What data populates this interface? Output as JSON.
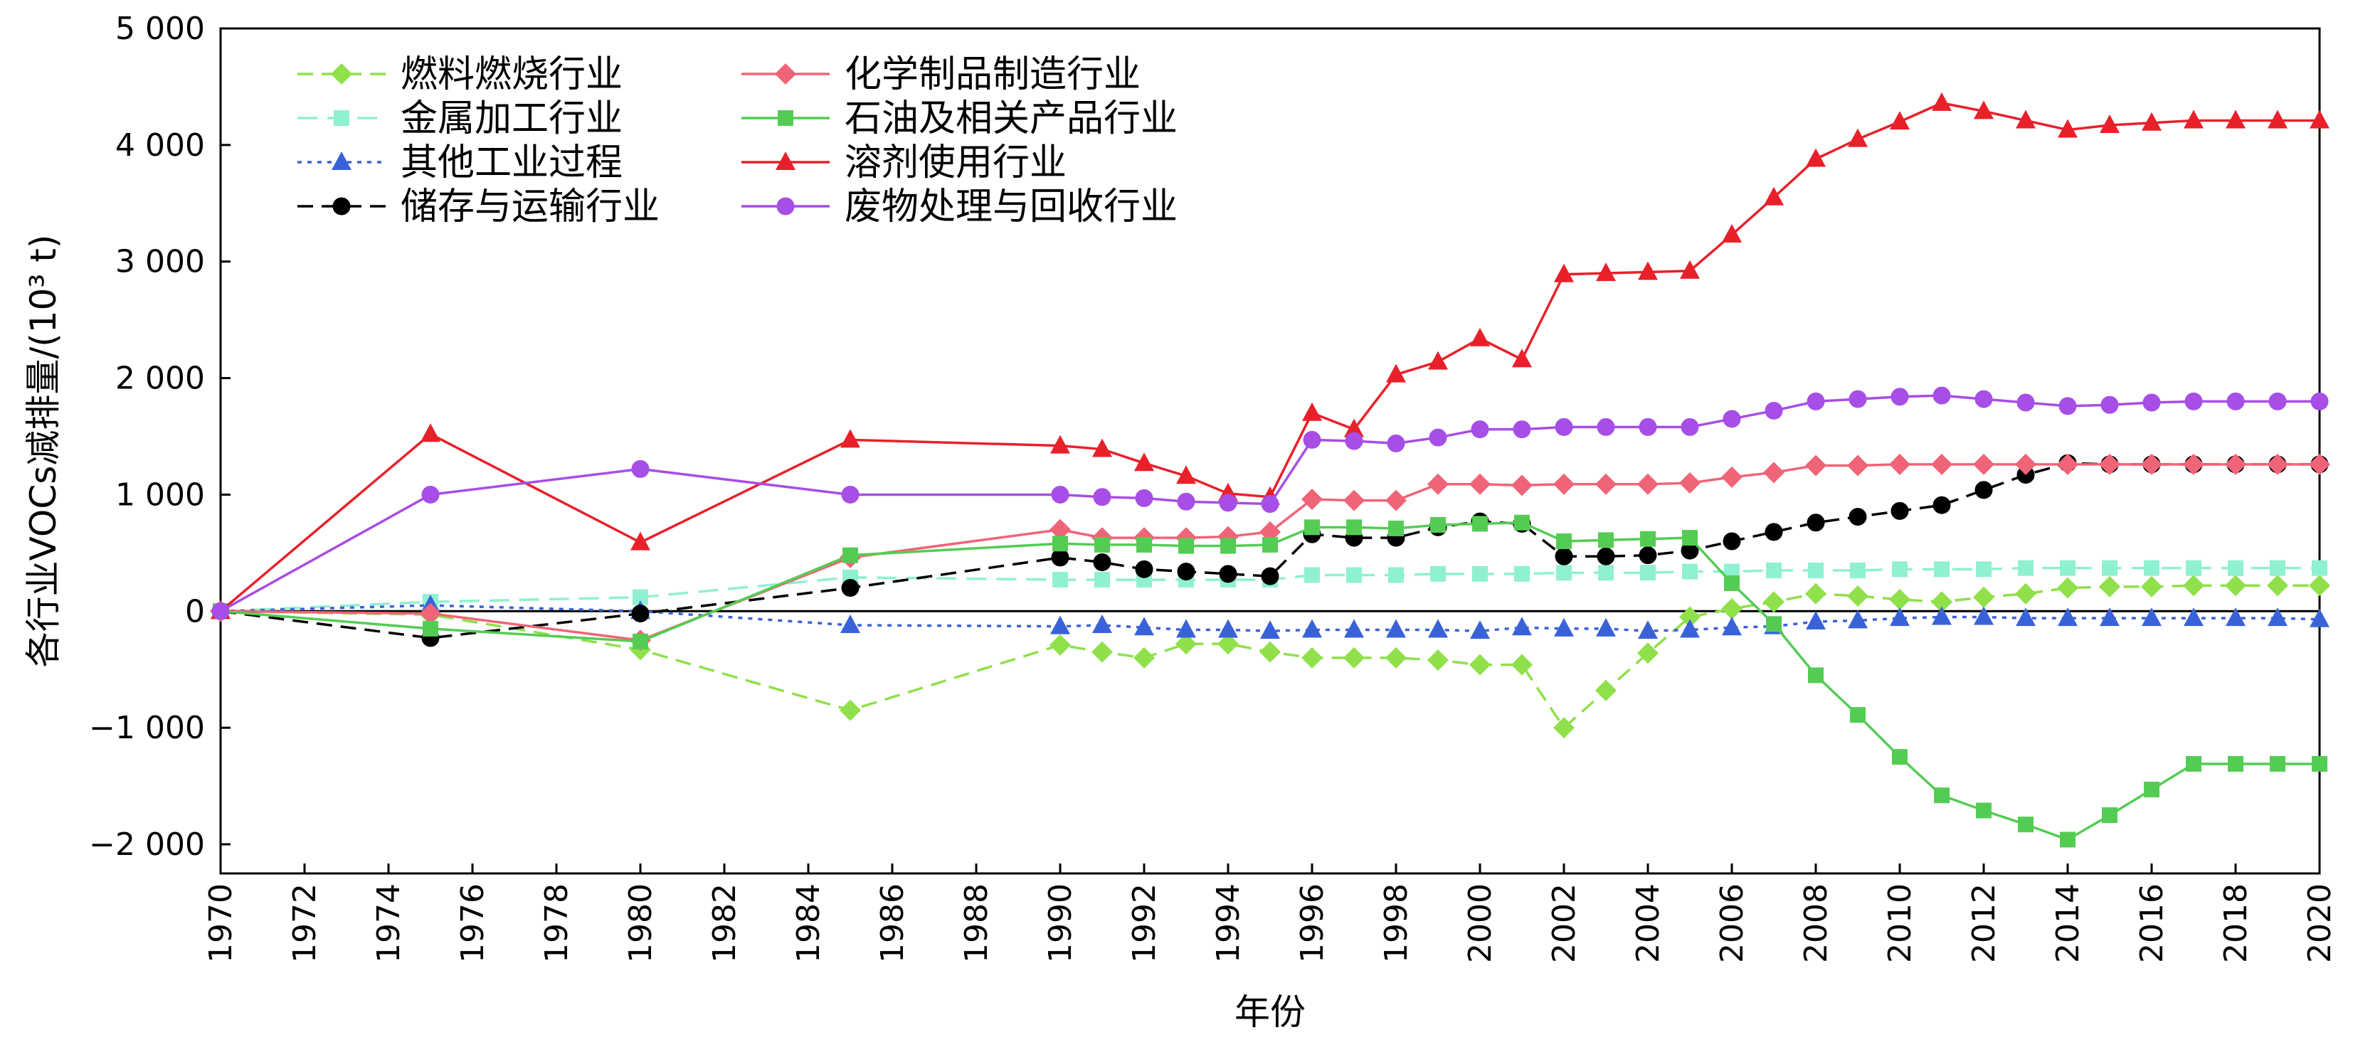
{
  "chart_data": {
    "type": "line",
    "xlabel": "年份",
    "ylabel": "各行业VOCs减排量/(10³ t)",
    "xlim": [
      1970,
      2020
    ],
    "ylim": [
      -2250,
      5000
    ],
    "x_ticks": [
      1970,
      1972,
      1974,
      1976,
      1978,
      1980,
      1982,
      1984,
      1986,
      1988,
      1990,
      1992,
      1994,
      1996,
      1998,
      2000,
      2002,
      2004,
      2006,
      2008,
      2010,
      2012,
      2014,
      2016,
      2018,
      2020
    ],
    "x_tick_labels": [
      "1970",
      "1972",
      "1974",
      "1976",
      "1978",
      "1980",
      "1982",
      "1984",
      "1986",
      "1988",
      "1990",
      "1992",
      "1994",
      "1996",
      "1998",
      "2000",
      "2002",
      "2004",
      "2006",
      "2008",
      "2010",
      "2012",
      "2014",
      "2016",
      "2018",
      "2020"
    ],
    "y_ticks": [
      -2000,
      -1000,
      0,
      1000,
      2000,
      3000,
      4000,
      5000
    ],
    "y_tick_labels": [
      "−2 000",
      "−1 000",
      "0",
      "1 000",
      "2 000",
      "3 000",
      "4 000",
      "5 000"
    ],
    "x": [
      1970,
      1975,
      1980,
      1985,
      1990,
      1991,
      1992,
      1993,
      1994,
      1995,
      1996,
      1997,
      1998,
      1999,
      2000,
      2001,
      2002,
      2003,
      2004,
      2005,
      2006,
      2007,
      2008,
      2009,
      2010,
      2011,
      2012,
      2013,
      2014,
      2015,
      2016,
      2017,
      2018,
      2019,
      2020
    ],
    "legend_position": "top-left",
    "series": [
      {
        "name": "燃料燃烧行业",
        "color": "#8fe04a",
        "dash": "22,12",
        "marker": "diamond",
        "values": [
          0,
          -30,
          -330,
          -850,
          -290,
          -350,
          -400,
          -280,
          -280,
          -350,
          -400,
          -400,
          -400,
          -420,
          -460,
          -460,
          -1000,
          -680,
          -360,
          -50,
          20,
          80,
          150,
          130,
          100,
          80,
          120,
          150,
          200,
          210,
          210,
          220,
          220,
          220,
          220
        ]
      },
      {
        "name": "金属加工行业",
        "color": "#8ff0d2",
        "dash": "28,14",
        "marker": "square",
        "values": [
          0,
          80,
          120,
          290,
          270,
          270,
          270,
          270,
          270,
          270,
          310,
          310,
          310,
          320,
          320,
          320,
          330,
          330,
          330,
          340,
          340,
          350,
          350,
          350,
          360,
          360,
          360,
          370,
          370,
          370,
          370,
          370,
          370,
          370,
          370
        ]
      },
      {
        "name": "其他工业过程",
        "color": "#3a62d8",
        "dash": "6,8",
        "marker": "triangle",
        "values": [
          0,
          50,
          0,
          -120,
          -130,
          -120,
          -140,
          -160,
          -160,
          -170,
          -160,
          -160,
          -160,
          -160,
          -170,
          -140,
          -150,
          -150,
          -170,
          -160,
          -140,
          -130,
          -90,
          -80,
          -60,
          -50,
          -50,
          -60,
          -60,
          -60,
          -60,
          -60,
          -60,
          -60,
          -70
        ]
      },
      {
        "name": "储存与运输行业",
        "color": "#000000",
        "dash": "22,12",
        "marker": "circle",
        "values": [
          0,
          -230,
          -20,
          200,
          460,
          420,
          360,
          340,
          320,
          300,
          660,
          630,
          630,
          720,
          770,
          750,
          470,
          470,
          480,
          520,
          600,
          680,
          760,
          810,
          860,
          910,
          1040,
          1170,
          1270,
          1260,
          1260,
          1260,
          1260,
          1260,
          1260
        ]
      },
      {
        "name": "化学制品制造行业",
        "color": "#f06478",
        "dash": "",
        "marker": "diamond",
        "values": [
          0,
          -20,
          -250,
          460,
          700,
          630,
          630,
          630,
          640,
          680,
          960,
          950,
          950,
          1090,
          1090,
          1080,
          1090,
          1090,
          1090,
          1100,
          1150,
          1190,
          1250,
          1250,
          1260,
          1260,
          1260,
          1260,
          1260,
          1260,
          1260,
          1260,
          1260,
          1260,
          1260
        ]
      },
      {
        "name": "石油及相关产品行业",
        "color": "#54cc54",
        "dash": "",
        "marker": "square",
        "values": [
          0,
          -150,
          -260,
          480,
          580,
          570,
          570,
          560,
          560,
          570,
          720,
          720,
          710,
          740,
          750,
          760,
          600,
          610,
          620,
          630,
          240,
          -110,
          -550,
          -890,
          -1250,
          -1580,
          -1710,
          -1830,
          -1960,
          -1750,
          -1530,
          -1310,
          -1310,
          -1310,
          -1310
        ]
      },
      {
        "name": "溶剂使用行业",
        "color": "#e8202a",
        "dash": "",
        "marker": "triangle",
        "values": [
          0,
          1520,
          590,
          1470,
          1420,
          1390,
          1270,
          1160,
          1010,
          980,
          1700,
          1560,
          2030,
          2140,
          2340,
          2160,
          2890,
          2900,
          2910,
          2920,
          3230,
          3550,
          3880,
          4050,
          4200,
          4360,
          4290,
          4210,
          4130,
          4170,
          4190,
          4210,
          4210,
          4210,
          4210
        ]
      },
      {
        "name": "废物处理与回收行业",
        "color": "#a64ee6",
        "dash": "",
        "marker": "circle",
        "values": [
          0,
          1000,
          1220,
          1000,
          1000,
          980,
          970,
          940,
          930,
          920,
          1470,
          1460,
          1440,
          1490,
          1560,
          1560,
          1580,
          1580,
          1580,
          1580,
          1650,
          1720,
          1800,
          1820,
          1840,
          1850,
          1820,
          1790,
          1760,
          1770,
          1790,
          1800,
          1800,
          1800,
          1800
        ]
      }
    ]
  }
}
